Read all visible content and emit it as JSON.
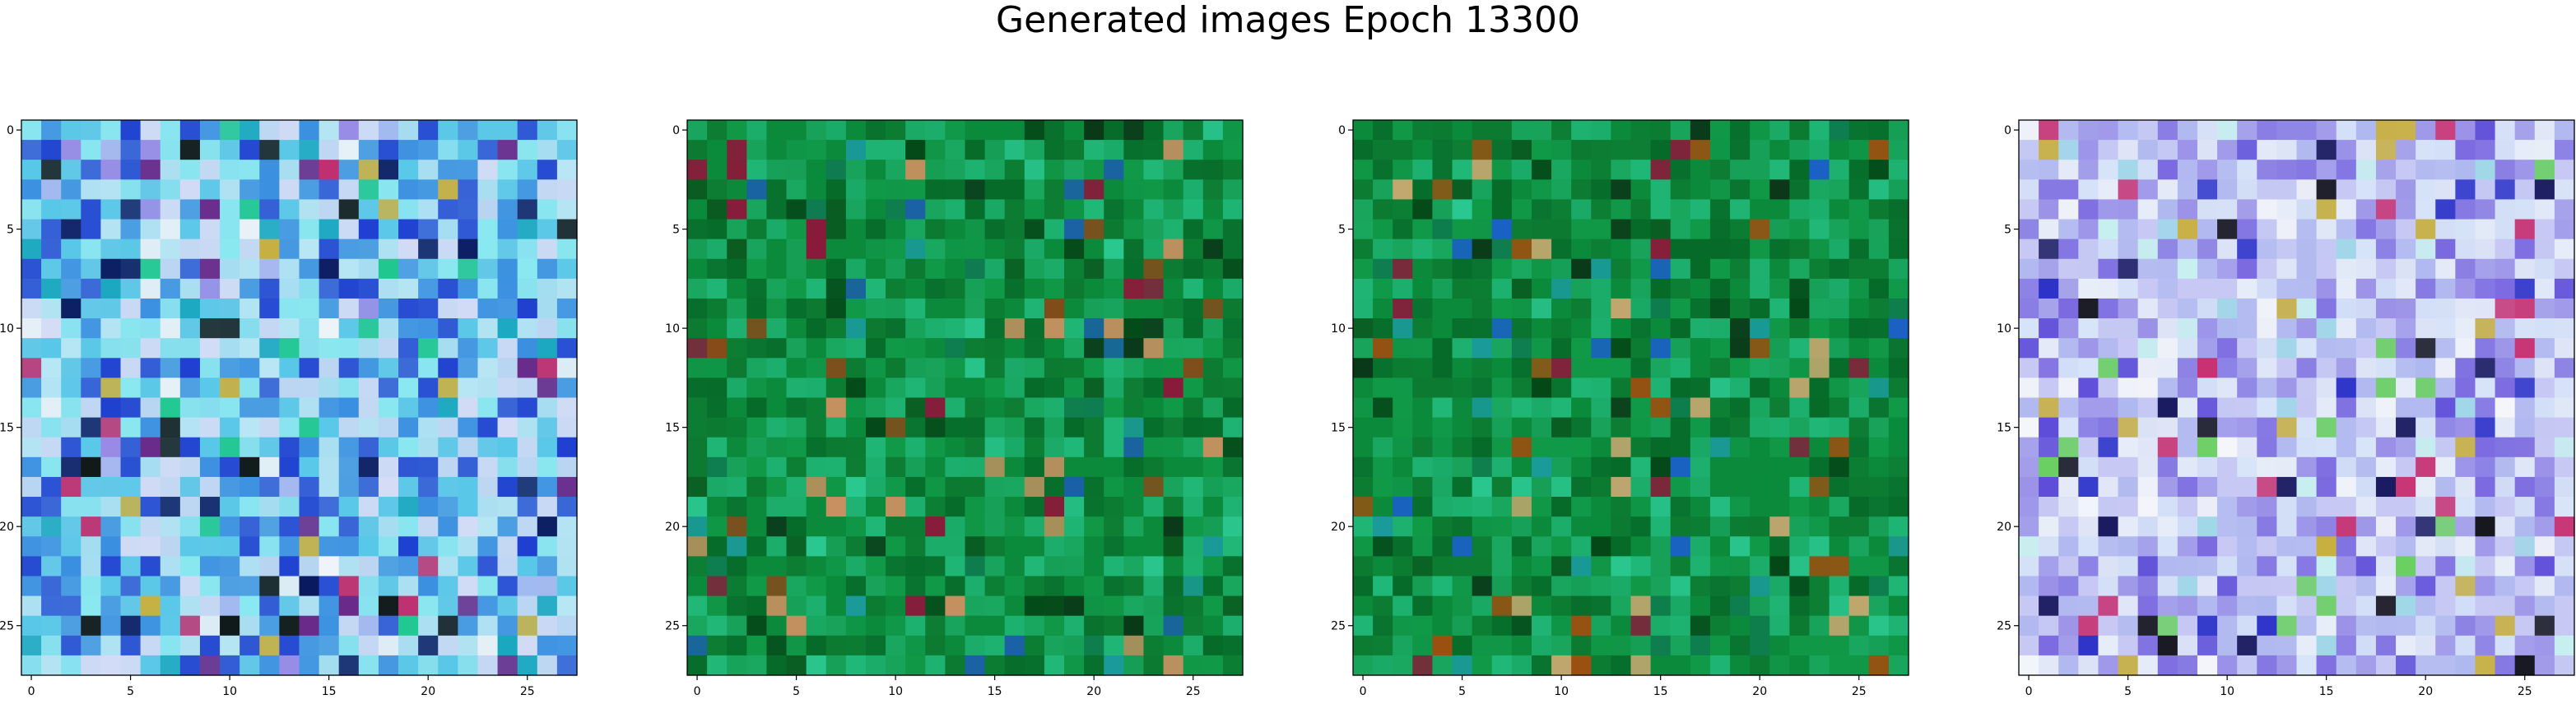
{
  "figure": {
    "title": "Generated images Epoch 13300"
  },
  "chart_data": [
    {
      "type": "heatmap",
      "title": "",
      "xlabel": "",
      "ylabel": "",
      "rows": 28,
      "cols": 28,
      "xlim": [
        -0.5,
        27.5
      ],
      "ylim": [
        27.5,
        -0.5
      ],
      "xticks": [
        0,
        5,
        10,
        15,
        20,
        25
      ],
      "yticks": [
        0,
        5,
        10,
        15,
        20,
        25
      ],
      "grid": false,
      "palette": [
        "#1e3fd0",
        "#3a8fe0",
        "#58c8e8",
        "#8ae8f0",
        "#b8e6f4",
        "#d4dcf6",
        "#a8b8f0",
        "#9a88e6",
        "#1aa8c0",
        "#20c890",
        "#0a1a60",
        "#6a2a8a",
        "#c03070",
        "#c8b040",
        "#101818",
        "#f0f4f8"
      ],
      "dominant_color": "#7ec8e8"
    },
    {
      "type": "heatmap",
      "title": "",
      "xlabel": "",
      "ylabel": "",
      "rows": 28,
      "cols": 28,
      "xlim": [
        -0.5,
        27.5
      ],
      "ylim": [
        27.5,
        -0.5
      ],
      "xticks": [
        0,
        5,
        10,
        15,
        20,
        25
      ],
      "yticks": [
        0,
        5,
        10,
        15,
        20,
        25
      ],
      "grid": false,
      "palette": [
        "#0a8a3a",
        "#109a48",
        "#0c7a30",
        "#066a28",
        "#1aa860",
        "#20b878",
        "#2ac890",
        "#0a5a20",
        "#044818",
        "#0e7c50",
        "#1a9a9a",
        "#0a3818",
        "#8a4818",
        "#8a1a3a",
        "#c89060",
        "#1a60a8"
      ],
      "dominant_color": "#0e8a40"
    },
    {
      "type": "heatmap",
      "title": "",
      "xlabel": "",
      "ylabel": "",
      "rows": 28,
      "cols": 28,
      "xlim": [
        -0.5,
        27.5
      ],
      "ylim": [
        27.5,
        -0.5
      ],
      "xticks": [
        0,
        5,
        10,
        15,
        20,
        25
      ],
      "yticks": [
        0,
        5,
        10,
        15,
        20,
        25
      ],
      "grid": false,
      "palette": [
        "#0a8a3a",
        "#109a48",
        "#0c7a30",
        "#066a28",
        "#1aa860",
        "#20b878",
        "#2ac890",
        "#0a5a20",
        "#044818",
        "#0e7c50",
        "#1a9a9a",
        "#0a3818",
        "#9a5010",
        "#8a1a3a",
        "#c8a870",
        "#1a60c8"
      ],
      "dominant_color": "#0e8a40"
    },
    {
      "type": "heatmap",
      "title": "",
      "xlabel": "",
      "ylabel": "",
      "rows": 28,
      "cols": 28,
      "xlim": [
        -0.5,
        27.5
      ],
      "ylim": [
        27.5,
        -0.5
      ],
      "xticks": [
        0,
        5,
        10,
        15,
        20,
        25
      ],
      "yticks": [
        0,
        5,
        10,
        15,
        20,
        25
      ],
      "grid": false,
      "palette": [
        "#c8c8f4",
        "#b0b8f0",
        "#d8e4f8",
        "#e8eef8",
        "#9a90e8",
        "#7a68e0",
        "#5a48d8",
        "#2a30c8",
        "#a0d8e8",
        "#c8f0f0",
        "#1a1a60",
        "#c83070",
        "#c8b040",
        "#101018",
        "#6ad060",
        "#f4f6fa"
      ],
      "dominant_color": "#c0c8f2"
    }
  ]
}
